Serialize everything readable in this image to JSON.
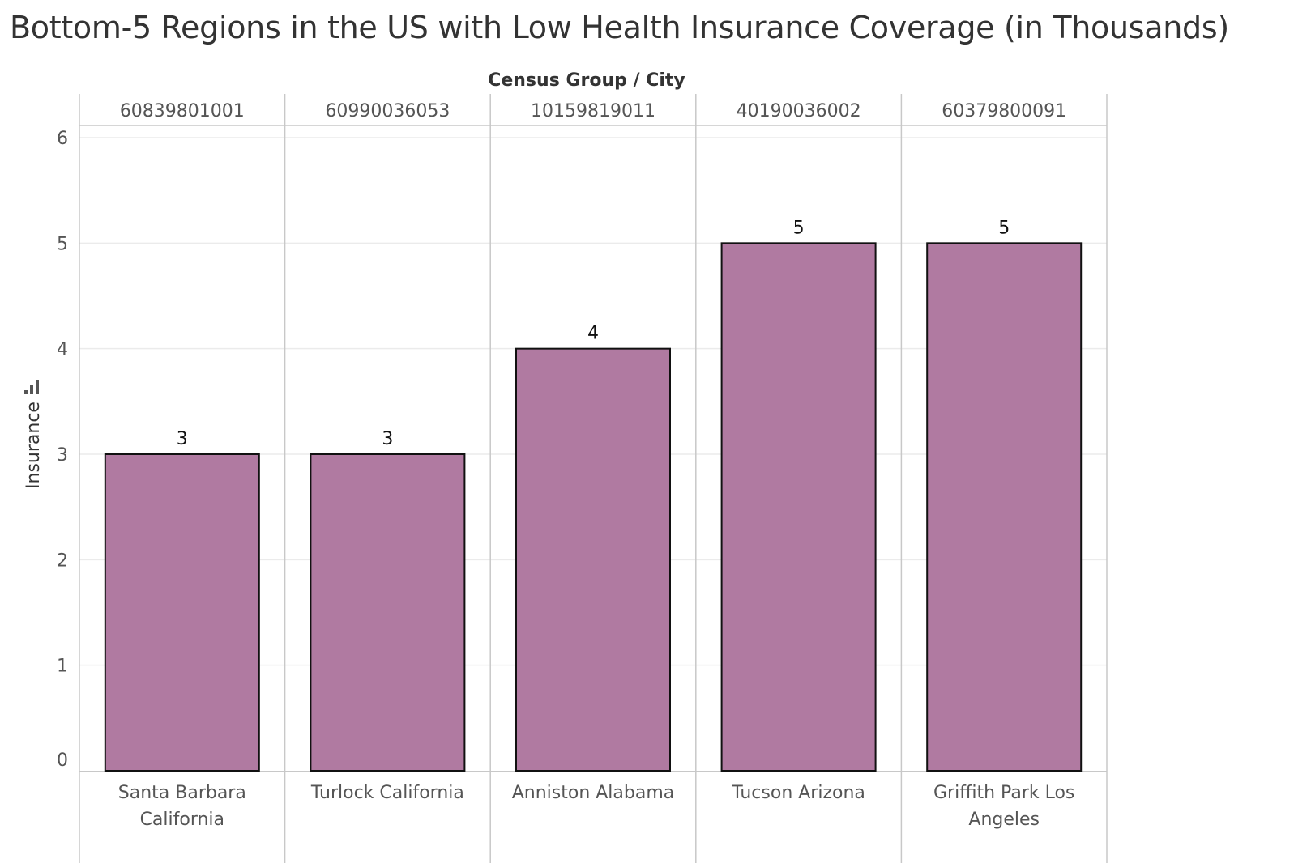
{
  "chart_data": {
    "type": "bar",
    "title": "Bottom-5 Regions in the US with Low Health Insurance Coverage (in Thousands)",
    "header_label": "Census Group  /  City",
    "ylabel": "Insurance",
    "ylim": [
      0,
      6
    ],
    "yticks": [
      0,
      1,
      2,
      3,
      4,
      5,
      6
    ],
    "census_groups": [
      "60839801001",
      "60990036053",
      "10159819011",
      "40190036002",
      "60379800091"
    ],
    "categories": [
      [
        "Santa Barbara",
        "California"
      ],
      [
        "Turlock California"
      ],
      [
        "Anniston Alabama"
      ],
      [
        "Tucson Arizona"
      ],
      [
        "Griffith Park Los",
        "Angeles"
      ]
    ],
    "values": [
      3,
      3,
      4,
      5,
      5
    ],
    "grid": true,
    "colors": {
      "bar": "#b07aa1",
      "bar_stroke": "#111111",
      "grid": "#ebebeb",
      "divider": "#c8c8c8"
    }
  }
}
